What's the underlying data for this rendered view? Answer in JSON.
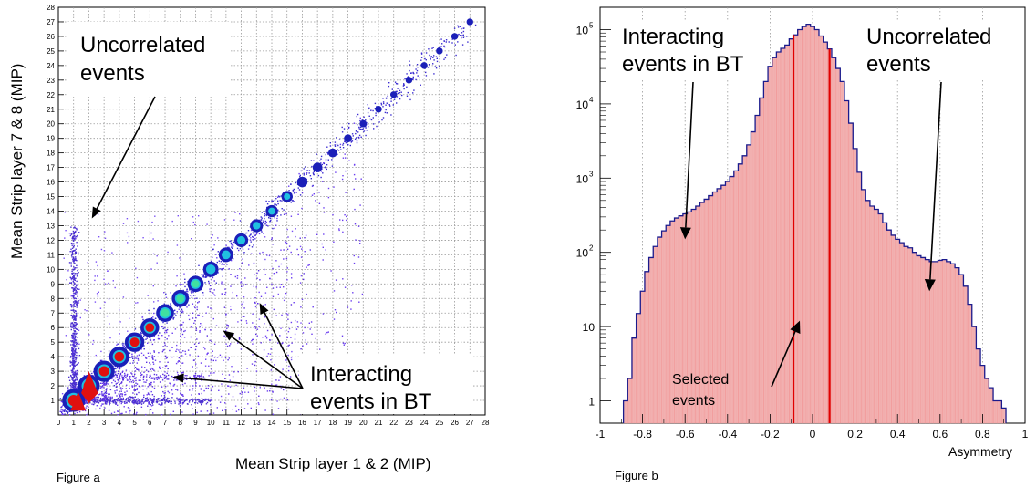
{
  "chart_data": [
    {
      "type": "heatmap",
      "caption": "Figure a",
      "xlabel": "Mean Strip layer 1 & 2 (MIP)",
      "ylabel": "Mean Strip layer 7 & 8 (MIP)",
      "xlim": [
        0,
        28
      ],
      "ylim": [
        0,
        28
      ],
      "xticks": [
        0,
        1,
        2,
        3,
        4,
        5,
        6,
        7,
        8,
        9,
        10,
        11,
        12,
        13,
        14,
        15,
        16,
        17,
        18,
        19,
        20,
        21,
        22,
        23,
        24,
        25,
        26,
        27,
        28
      ],
      "yticks": [
        1,
        2,
        3,
        4,
        5,
        6,
        7,
        8,
        9,
        10,
        11,
        12,
        13,
        14,
        15,
        16,
        17,
        18,
        19,
        20,
        21,
        22,
        23,
        24,
        25,
        26,
        27,
        28
      ],
      "grid": true,
      "diagonal_peaks": [
        1,
        2,
        3,
        4,
        5,
        6,
        7,
        8,
        9,
        10,
        11,
        12,
        13,
        14,
        15,
        16,
        17,
        18,
        19,
        20,
        21,
        22,
        23,
        24,
        25,
        26,
        27
      ],
      "annotations": [
        {
          "text_lines": [
            "Uncorrelated",
            "events"
          ],
          "target": [
            2.2,
            13.5
          ]
        },
        {
          "text_lines": [
            "Interacting",
            "events in BT"
          ],
          "targets": [
            [
              7.5,
              2.6
            ],
            [
              10.8,
              5.8
            ],
            [
              13.2,
              7.7
            ]
          ]
        }
      ]
    },
    {
      "type": "histogram",
      "caption": "Figure b",
      "xlabel": "Asymmetry",
      "xlim": [
        -1,
        1
      ],
      "ylim": [
        0.5,
        200000
      ],
      "yscale": "log",
      "xticks": [
        "-1",
        "-0.8",
        "-0.6",
        "-0.4",
        "-0.2",
        "0",
        "0.2",
        "0.4",
        "0.6",
        "0.8",
        "1"
      ],
      "yticks": [
        {
          "value": 1,
          "base": "1",
          "exp": ""
        },
        {
          "value": 10,
          "base": "10",
          "exp": ""
        },
        {
          "value": 100,
          "base": "10",
          "exp": "2"
        },
        {
          "value": 1000,
          "base": "10",
          "exp": "3"
        },
        {
          "value": 10000,
          "base": "10",
          "exp": "4"
        },
        {
          "value": 100000,
          "base": "10",
          "exp": "5"
        }
      ],
      "grid": "vertical dotted",
      "fill_color": "#f4b6b6",
      "line_color": "#1a1a8c",
      "selection_color": "#e00000",
      "selection_cut": [
        -0.09,
        0.08
      ],
      "x": [
        -0.88,
        -0.86,
        -0.84,
        -0.82,
        -0.8,
        -0.78,
        -0.76,
        -0.74,
        -0.72,
        -0.7,
        -0.68,
        -0.66,
        -0.64,
        -0.62,
        -0.6,
        -0.58,
        -0.56,
        -0.54,
        -0.52,
        -0.5,
        -0.48,
        -0.46,
        -0.44,
        -0.42,
        -0.4,
        -0.38,
        -0.36,
        -0.34,
        -0.32,
        -0.3,
        -0.28,
        -0.26,
        -0.24,
        -0.22,
        -0.2,
        -0.18,
        -0.16,
        -0.14,
        -0.12,
        -0.1,
        -0.08,
        -0.06,
        -0.04,
        -0.02,
        0,
        0.02,
        0.04,
        0.06,
        0.08,
        0.1,
        0.12,
        0.14,
        0.16,
        0.18,
        0.2,
        0.22,
        0.24,
        0.26,
        0.28,
        0.3,
        0.32,
        0.34,
        0.36,
        0.38,
        0.4,
        0.42,
        0.44,
        0.46,
        0.48,
        0.5,
        0.52,
        0.54,
        0.56,
        0.58,
        0.6,
        0.62,
        0.64,
        0.66,
        0.68,
        0.7,
        0.72,
        0.74,
        0.76,
        0.78,
        0.8,
        0.82,
        0.84,
        0.86,
        0.88,
        0.9
      ],
      "values": [
        1,
        2,
        7,
        15,
        30,
        55,
        85,
        120,
        160,
        195,
        230,
        265,
        290,
        310,
        330,
        350,
        380,
        420,
        470,
        520,
        580,
        650,
        720,
        800,
        900,
        1050,
        1250,
        1550,
        2000,
        2800,
        4200,
        7000,
        12000,
        20000,
        32000,
        42000,
        50000,
        56000,
        62000,
        75000,
        85000,
        100000,
        110000,
        118000,
        110000,
        100000,
        82000,
        68000,
        55000,
        42000,
        30000,
        20000,
        11000,
        5500,
        2500,
        1200,
        700,
        500,
        420,
        380,
        330,
        250,
        200,
        170,
        150,
        135,
        120,
        115,
        100,
        90,
        85,
        80,
        75,
        75,
        78,
        80,
        75,
        70,
        62,
        50,
        35,
        20,
        10,
        5,
        3,
        2,
        1.5,
        1,
        1,
        0.8
      ],
      "annotations": [
        {
          "text_lines": [
            "Interacting",
            "events in BT"
          ],
          "target": [
            -0.6,
            150
          ]
        },
        {
          "text_lines": [
            "Uncorrelated",
            "events"
          ],
          "target": [
            0.55,
            30
          ]
        },
        {
          "text_lines": [
            "Selected",
            "events"
          ],
          "target": [
            -0.06,
            12
          ]
        }
      ]
    }
  ]
}
